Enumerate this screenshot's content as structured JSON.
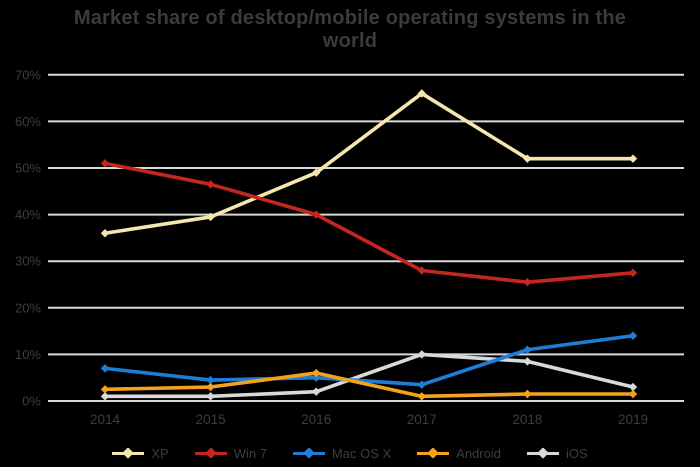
{
  "title": {
    "line1": "Market share of desktop/mobile operating systems in the",
    "line2": "world"
  },
  "colors": {
    "background": "#000000",
    "gridline": "#d9d9d9",
    "text": "#3d3d3d"
  },
  "chart_data": {
    "type": "line",
    "title": "Market share of desktop/mobile operating systems in the world",
    "categories": [
      "2014",
      "2015",
      "2016",
      "2017",
      "2018",
      "2019"
    ],
    "series": [
      {
        "name": "XP",
        "color": "#f5e6ae",
        "values": [
          36,
          39.5,
          49,
          66,
          52,
          52
        ]
      },
      {
        "name": "Win 7",
        "color": "#c3271f",
        "values": [
          51,
          46.5,
          40,
          28,
          25.5,
          27.5
        ]
      },
      {
        "name": "Mac OS X",
        "color": "#1e7dd7",
        "values": [
          7,
          4.5,
          5,
          3.5,
          11,
          14
        ]
      },
      {
        "name": "Android",
        "color": "#f5a21b",
        "values": [
          2.5,
          3,
          6,
          1,
          1.5,
          1.5
        ]
      },
      {
        "name": "iOS",
        "color": "#d9d9d9",
        "values": [
          1,
          1,
          2,
          10,
          8.5,
          3
        ]
      }
    ],
    "ylim": [
      0,
      70
    ],
    "ytick_step": 10,
    "ytick_labels": [
      "0%",
      "10%",
      "20%",
      "30%",
      "40%",
      "50%",
      "60%",
      "70%"
    ],
    "ylabel_format": "percent",
    "xlabel": "",
    "ylabel": "",
    "grid": true,
    "legend_position": "bottom",
    "marker": "diamond"
  }
}
